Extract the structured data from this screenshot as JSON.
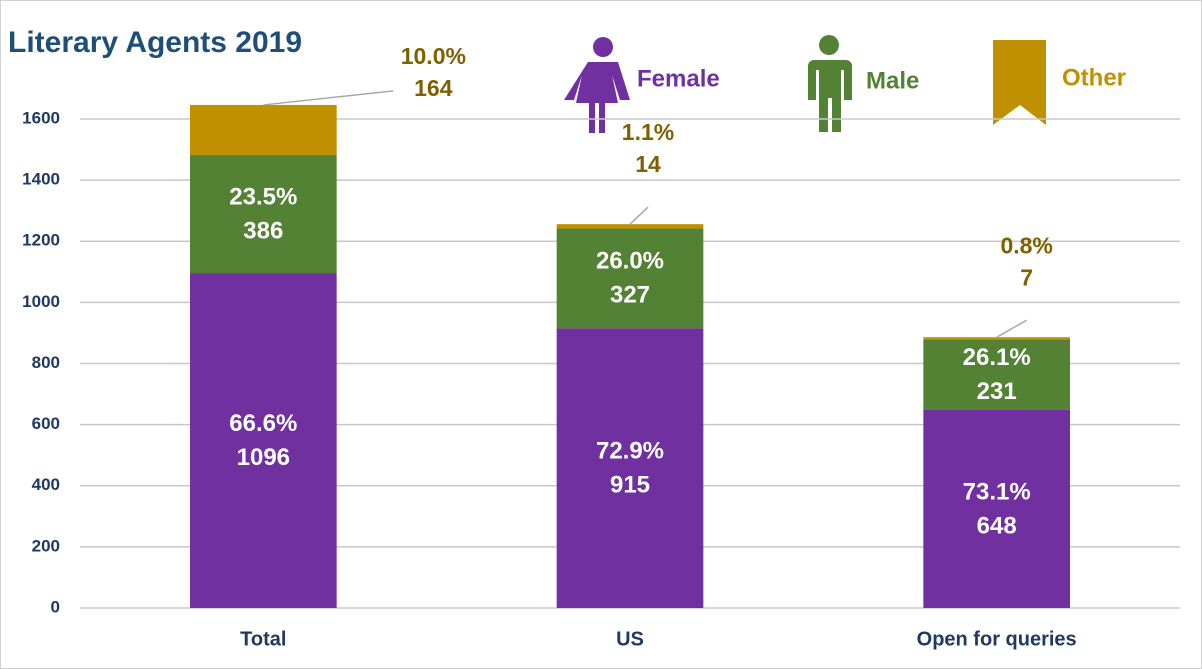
{
  "chart_data": {
    "type": "stacked_bar",
    "title": "Literary Agents 2019",
    "categories": [
      "Total",
      "US",
      "Open for queries"
    ],
    "series": [
      {
        "name": "Female",
        "color": "#7030a0",
        "values": [
          1096,
          915,
          648
        ],
        "percent_labels": [
          "66.6%",
          "72.9%",
          "73.1%"
        ]
      },
      {
        "name": "Male",
        "color": "#548235",
        "values": [
          386,
          327,
          231
        ],
        "percent_labels": [
          "23.5%",
          "26.0%",
          "26.1%"
        ]
      },
      {
        "name": "Other",
        "color": "#bf9000",
        "values": [
          164,
          14,
          7
        ],
        "percent_labels": [
          "10.0%",
          "1.1%",
          "0.8%"
        ]
      }
    ],
    "ylim": [
      0,
      1600
    ],
    "yticks": [
      0,
      200,
      400,
      600,
      800,
      1000,
      1200,
      1400,
      1600
    ],
    "grid": true
  }
}
